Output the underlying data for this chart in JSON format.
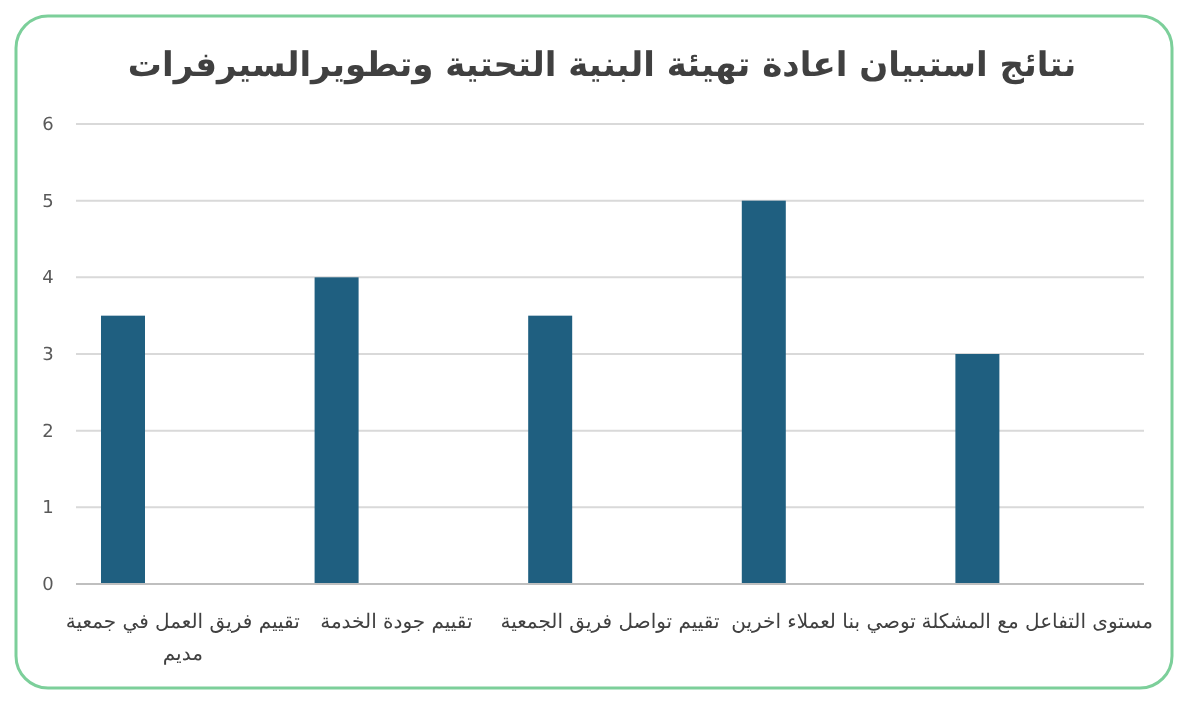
{
  "chart_data": {
    "type": "bar",
    "title": "نتائج استبيان اعادة تهيئة البنية التحتية وتطويرالسيرفرات",
    "categories": [
      "تقييم فريق العمل في جمعية مديم",
      "تقييم جودة الخدمة",
      "تقييم تواصل فريق الجمعية",
      "توصي بنا لعملاء اخرين",
      "مستوى التفاعل مع المشكلة"
    ],
    "values": [
      3.5,
      4,
      3.5,
      5,
      3
    ],
    "color": "#1f5f80",
    "ylim": [
      0,
      6
    ],
    "yticks": [
      0,
      1,
      2,
      3,
      4,
      5,
      6
    ],
    "grid": "y"
  }
}
